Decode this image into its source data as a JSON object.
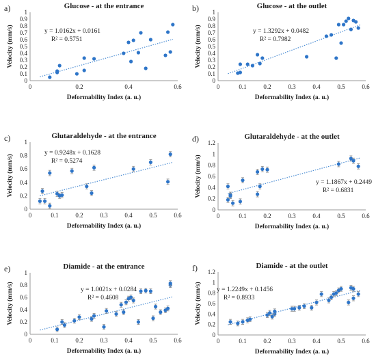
{
  "chart_data": [
    {
      "letter": "a)",
      "type": "scatter",
      "title": "Glucose - at the entrance",
      "xlabel": "Deformability Index (a. u.)",
      "ylabel": "Velocity (mm/s)",
      "xlim": [
        0,
        0.6
      ],
      "ylim": [
        0,
        1
      ],
      "xticks": [
        "0",
        "0.2",
        "0.4",
        "0.6"
      ],
      "yticks": [
        "0",
        "0.1",
        "0.2",
        "0.3",
        "0.4",
        "0.5",
        "0.6",
        "0.7",
        "0.8",
        "0.9",
        "1"
      ],
      "equation": "y = 1.0162x + 0.0161",
      "r2": "R² = 0.5751",
      "trendline": {
        "slope": 1.0162,
        "intercept": 0.0161
      },
      "error_bars": false,
      "points": [
        {
          "x": 0.08,
          "y": 0.05
        },
        {
          "x": 0.11,
          "y": 0.12
        },
        {
          "x": 0.11,
          "y": 0.14
        },
        {
          "x": 0.12,
          "y": 0.22
        },
        {
          "x": 0.19,
          "y": 0.1
        },
        {
          "x": 0.22,
          "y": 0.15
        },
        {
          "x": 0.22,
          "y": 0.33
        },
        {
          "x": 0.26,
          "y": 0.32
        },
        {
          "x": 0.38,
          "y": 0.4
        },
        {
          "x": 0.4,
          "y": 0.56
        },
        {
          "x": 0.41,
          "y": 0.28
        },
        {
          "x": 0.42,
          "y": 0.59
        },
        {
          "x": 0.44,
          "y": 0.41
        },
        {
          "x": 0.45,
          "y": 0.7
        },
        {
          "x": 0.47,
          "y": 0.18
        },
        {
          "x": 0.49,
          "y": 0.6
        },
        {
          "x": 0.55,
          "y": 0.37
        },
        {
          "x": 0.56,
          "y": 0.71
        },
        {
          "x": 0.57,
          "y": 0.42
        },
        {
          "x": 0.58,
          "y": 0.82
        }
      ]
    },
    {
      "letter": "b)",
      "type": "scatter",
      "title": "Glucose - at the outlet",
      "xlabel": "Deformability Index (a. u.)",
      "ylabel": "Velocity (mm/s)",
      "xlim": [
        0,
        0.6
      ],
      "ylim": [
        0,
        1
      ],
      "xticks": [
        "0",
        "0.1",
        "0.2",
        "0.3",
        "0.4",
        "0.5",
        "0.6"
      ],
      "yticks": [
        "0",
        "0.1",
        "0.2",
        "0.3",
        "0.4",
        "0.5",
        "0.6",
        "0.7",
        "0.8",
        "0.9",
        "1"
      ],
      "equation": "y = 1.3292x + 0.0482",
      "r2": "R² = 0.7982",
      "trendline": {
        "slope": 1.3292,
        "intercept": 0.0482
      },
      "error_bars": false,
      "points": [
        {
          "x": 0.08,
          "y": 0.11
        },
        {
          "x": 0.09,
          "y": 0.12
        },
        {
          "x": 0.09,
          "y": 0.24
        },
        {
          "x": 0.12,
          "y": 0.24
        },
        {
          "x": 0.14,
          "y": 0.22
        },
        {
          "x": 0.16,
          "y": 0.38
        },
        {
          "x": 0.17,
          "y": 0.25
        },
        {
          "x": 0.18,
          "y": 0.33
        },
        {
          "x": 0.36,
          "y": 0.35
        },
        {
          "x": 0.44,
          "y": 0.65
        },
        {
          "x": 0.46,
          "y": 0.67
        },
        {
          "x": 0.48,
          "y": 0.33
        },
        {
          "x": 0.49,
          "y": 0.82
        },
        {
          "x": 0.5,
          "y": 0.55
        },
        {
          "x": 0.51,
          "y": 0.82
        },
        {
          "x": 0.52,
          "y": 0.87
        },
        {
          "x": 0.53,
          "y": 0.91
        },
        {
          "x": 0.54,
          "y": 0.75
        },
        {
          "x": 0.55,
          "y": 0.88
        },
        {
          "x": 0.56,
          "y": 0.86
        },
        {
          "x": 0.57,
          "y": 0.77
        }
      ]
    },
    {
      "letter": "c)",
      "type": "scatter",
      "title": "Glutaraldehyde - at the entrance",
      "xlabel": "Deformability Index (a. u.)",
      "ylabel": "Velocity (mm/s)",
      "xlim": [
        0,
        0.6
      ],
      "ylim": [
        0,
        1
      ],
      "xticks": [
        "0",
        "0.1",
        "0.2",
        "0.3",
        "0.4",
        "0.5",
        "0.6"
      ],
      "yticks": [
        "0",
        "0.2",
        "0.4",
        "0.6",
        "0.8",
        "1"
      ],
      "equation": "y = 0.9248x + 0.1628",
      "r2": "R² = 0.5274",
      "trendline": {
        "slope": 0.9248,
        "intercept": 0.1628
      },
      "error_bars": true,
      "points": [
        {
          "x": 0.04,
          "y": 0.12
        },
        {
          "x": 0.05,
          "y": 0.27
        },
        {
          "x": 0.06,
          "y": 0.12
        },
        {
          "x": 0.08,
          "y": 0.05
        },
        {
          "x": 0.08,
          "y": 0.54
        },
        {
          "x": 0.11,
          "y": 0.23
        },
        {
          "x": 0.12,
          "y": 0.2
        },
        {
          "x": 0.13,
          "y": 0.21
        },
        {
          "x": 0.17,
          "y": 0.57
        },
        {
          "x": 0.23,
          "y": 0.34
        },
        {
          "x": 0.25,
          "y": 0.24
        },
        {
          "x": 0.26,
          "y": 0.62
        },
        {
          "x": 0.42,
          "y": 0.6
        },
        {
          "x": 0.49,
          "y": 0.7
        },
        {
          "x": 0.56,
          "y": 0.41
        },
        {
          "x": 0.57,
          "y": 0.82
        }
      ]
    },
    {
      "letter": "d)",
      "type": "scatter",
      "title": "Glutaraldehyde - at the outlet",
      "xlabel": "Deformability Index (a. u.)",
      "ylabel": "Velocity (mm/s)",
      "xlim": [
        0,
        0.6
      ],
      "ylim": [
        0,
        1.2
      ],
      "xticks": [
        "0",
        "0.1",
        "0.2",
        "0.3",
        "0.4",
        "0.5",
        "0.6"
      ],
      "yticks": [
        "0",
        "0.2",
        "0.4",
        "0.6",
        "0.8",
        "1",
        "1.2"
      ],
      "equation": "y = 1.1867x + 0.2449",
      "r2": "R² = 0.6831",
      "trendline": {
        "slope": 1.1867,
        "intercept": 0.2449
      },
      "error_bars": true,
      "points": [
        {
          "x": 0.04,
          "y": 0.42
        },
        {
          "x": 0.04,
          "y": 0.18
        },
        {
          "x": 0.05,
          "y": 0.27
        },
        {
          "x": 0.05,
          "y": 0.25
        },
        {
          "x": 0.06,
          "y": 0.12
        },
        {
          "x": 0.09,
          "y": 0.15
        },
        {
          "x": 0.1,
          "y": 0.53
        },
        {
          "x": 0.16,
          "y": 0.68
        },
        {
          "x": 0.16,
          "y": 0.28
        },
        {
          "x": 0.17,
          "y": 0.42
        },
        {
          "x": 0.18,
          "y": 0.73
        },
        {
          "x": 0.2,
          "y": 0.72
        },
        {
          "x": 0.49,
          "y": 0.82
        },
        {
          "x": 0.54,
          "y": 0.92
        },
        {
          "x": 0.55,
          "y": 0.88
        },
        {
          "x": 0.57,
          "y": 0.78
        }
      ]
    },
    {
      "letter": "e)",
      "type": "scatter",
      "title": "Diamide - at the entrance",
      "xlabel": "Deformability Index (a. u.)",
      "ylabel": "Velocity (mm/s)",
      "xlim": [
        0,
        0.6
      ],
      "ylim": [
        0,
        1
      ],
      "xticks": [
        "0",
        "0.1",
        "0.2",
        "0.3",
        "0.4",
        "0.5",
        "0.6"
      ],
      "yticks": [
        "0",
        "0.2",
        "0.4",
        "0.6",
        "0.8",
        "1"
      ],
      "equation": "y = 1.0021x + 0.0284",
      "r2": "R² = 0.4608",
      "trendline": {
        "slope": 1.0021,
        "intercept": 0.0284
      },
      "error_bars": true,
      "points": [
        {
          "x": 0.11,
          "y": 0.08
        },
        {
          "x": 0.13,
          "y": 0.2
        },
        {
          "x": 0.14,
          "y": 0.15
        },
        {
          "x": 0.18,
          "y": 0.22
        },
        {
          "x": 0.2,
          "y": 0.28
        },
        {
          "x": 0.25,
          "y": 0.25
        },
        {
          "x": 0.26,
          "y": 0.3
        },
        {
          "x": 0.3,
          "y": 0.12
        },
        {
          "x": 0.31,
          "y": 0.38
        },
        {
          "x": 0.35,
          "y": 0.33
        },
        {
          "x": 0.37,
          "y": 0.48
        },
        {
          "x": 0.38,
          "y": 0.36
        },
        {
          "x": 0.39,
          "y": 0.52
        },
        {
          "x": 0.4,
          "y": 0.58
        },
        {
          "x": 0.41,
          "y": 0.6
        },
        {
          "x": 0.42,
          "y": 0.55
        },
        {
          "x": 0.44,
          "y": 0.2
        },
        {
          "x": 0.45,
          "y": 0.7
        },
        {
          "x": 0.47,
          "y": 0.71
        },
        {
          "x": 0.49,
          "y": 0.7
        },
        {
          "x": 0.5,
          "y": 0.26
        },
        {
          "x": 0.51,
          "y": 0.45
        },
        {
          "x": 0.53,
          "y": 0.36
        },
        {
          "x": 0.55,
          "y": 0.39
        },
        {
          "x": 0.56,
          "y": 0.42
        },
        {
          "x": 0.57,
          "y": 0.8
        },
        {
          "x": 0.57,
          "y": 0.83
        }
      ]
    },
    {
      "letter": "f)",
      "type": "scatter",
      "title": "Diamide - at the outlet",
      "xlabel": "Deformability Index (a. u.)",
      "ylabel": "Velocity (mm/s)",
      "xlim": [
        0,
        0.6
      ],
      "ylim": [
        0,
        1.2
      ],
      "xticks": [
        "0",
        "0.1",
        "0.2",
        "0.3",
        "0.4",
        "0.5",
        "0.6"
      ],
      "yticks": [
        "0",
        "0.2",
        "0.4",
        "0.6",
        "0.8",
        "1",
        "1.2"
      ],
      "equation": "y = 1.2249x + 0.1456",
      "r2": "R² = 0.8933",
      "trendline": {
        "slope": 1.2249,
        "intercept": 0.1456
      },
      "error_bars": true,
      "points": [
        {
          "x": 0.05,
          "y": 0.25
        },
        {
          "x": 0.08,
          "y": 0.22
        },
        {
          "x": 0.1,
          "y": 0.25
        },
        {
          "x": 0.12,
          "y": 0.28
        },
        {
          "x": 0.13,
          "y": 0.3
        },
        {
          "x": 0.2,
          "y": 0.38
        },
        {
          "x": 0.21,
          "y": 0.42
        },
        {
          "x": 0.22,
          "y": 0.35
        },
        {
          "x": 0.23,
          "y": 0.4
        },
        {
          "x": 0.23,
          "y": 0.45
        },
        {
          "x": 0.3,
          "y": 0.5
        },
        {
          "x": 0.31,
          "y": 0.5
        },
        {
          "x": 0.33,
          "y": 0.52
        },
        {
          "x": 0.35,
          "y": 0.55
        },
        {
          "x": 0.38,
          "y": 0.52
        },
        {
          "x": 0.4,
          "y": 0.62
        },
        {
          "x": 0.42,
          "y": 0.78
        },
        {
          "x": 0.45,
          "y": 0.66
        },
        {
          "x": 0.46,
          "y": 0.72
        },
        {
          "x": 0.47,
          "y": 0.78
        },
        {
          "x": 0.48,
          "y": 0.8
        },
        {
          "x": 0.49,
          "y": 0.85
        },
        {
          "x": 0.5,
          "y": 0.88
        },
        {
          "x": 0.53,
          "y": 0.62
        },
        {
          "x": 0.54,
          "y": 0.9
        },
        {
          "x": 0.55,
          "y": 0.88
        },
        {
          "x": 0.55,
          "y": 0.7
        },
        {
          "x": 0.57,
          "y": 0.78
        }
      ]
    }
  ],
  "colors": {
    "marker": "#2e75c8",
    "trendline": "#4f8fd4",
    "axis": "#999999",
    "error_bar": "#8a8a8a"
  }
}
